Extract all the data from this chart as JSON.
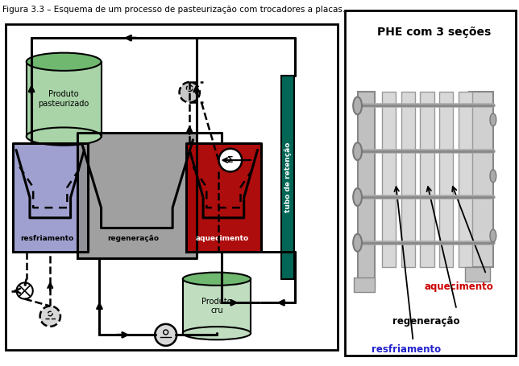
{
  "title": "Figura 3.3 – Esquema de um processo de pasteurização com trocadores a placas.",
  "phe_title": "PHE com 3 seções",
  "label_cooling": "resfriamento",
  "label_regen": "regeneração",
  "label_heating": "aquecimento",
  "label_produto_past": "Produto\npasteurizado",
  "label_produto_cru": "Produto\ncru",
  "label_tubo": "tubo de retenção",
  "color_cooling": "#9090c8",
  "color_regen": "#909090",
  "color_heating": "#aa0000",
  "color_tubo": "#006655",
  "color_tank_body": "#a8d4a8",
  "color_tank_top": "#70b870",
  "color_tank_cru": "#c0ddc0",
  "text_cooling_color": "#2222cc",
  "text_regen_color": "#000000",
  "text_heating_color": "#cc0000"
}
